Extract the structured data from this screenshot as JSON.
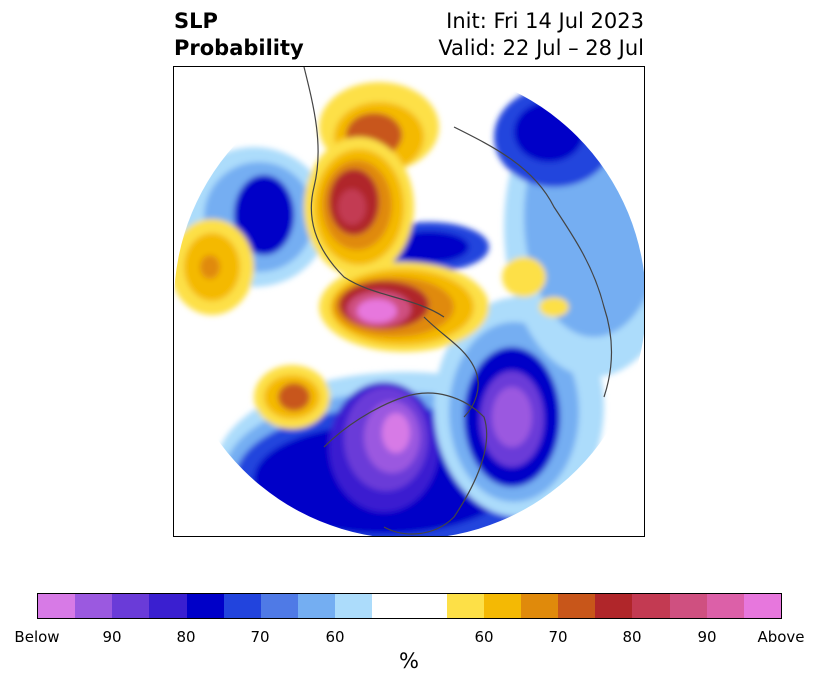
{
  "header": {
    "variable": "SLP",
    "product": "Probability",
    "init": "Init: Fri 14 Jul 2023",
    "valid": "Valid: 22 Jul – 28 Jul"
  },
  "colorbar": {
    "label": "%",
    "ticks": [
      "Below",
      "90",
      "80",
      "70",
      "60",
      "60",
      "70",
      "80",
      "90",
      "Above"
    ],
    "below_colors": [
      "#d77ae6",
      "#9b59e0",
      "#6a3bd8",
      "#3a1fd0",
      "#0000c8",
      "#2244dd",
      "#4f7ae6",
      "#74aef2",
      "#acdcfb"
    ],
    "neutral_color": "#ffffff",
    "above_colors": [
      "#fde047",
      "#f4b904",
      "#e08a0b",
      "#c8561a",
      "#b0262a",
      "#c33a52",
      "#cf5080",
      "#dc60a8",
      "#e777dd"
    ]
  },
  "map": {
    "projection": "north-polar-stereographic",
    "fill_color": "#ffffff",
    "coastline_color": "#444444"
  }
}
